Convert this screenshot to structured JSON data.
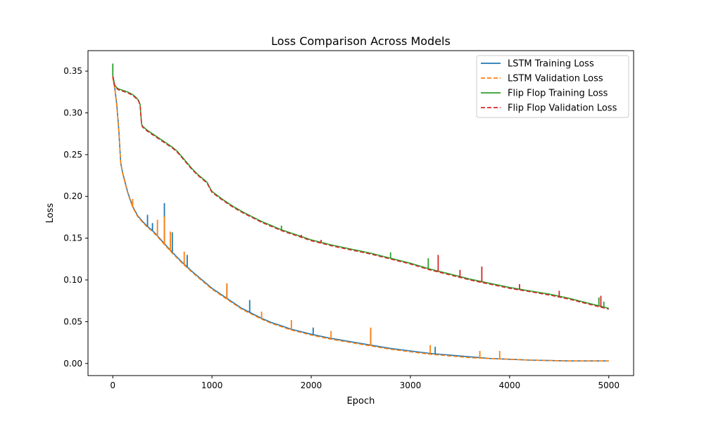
{
  "chart_data": {
    "type": "line",
    "title": "Loss Comparison Across Models",
    "xlabel": "Epoch",
    "ylabel": "Loss",
    "xlim": [
      -250,
      5250
    ],
    "ylim": [
      -0.0145,
      0.3745
    ],
    "xticks": [
      0,
      1000,
      2000,
      3000,
      4000,
      5000
    ],
    "xtick_labels": [
      "0",
      "1000",
      "2000",
      "3000",
      "4000",
      "5000"
    ],
    "yticks": [
      0.0,
      0.05,
      0.1,
      0.15,
      0.2,
      0.25,
      0.3,
      0.35
    ],
    "ytick_labels": [
      "0.00",
      "0.05",
      "0.10",
      "0.15",
      "0.20",
      "0.25",
      "0.30",
      "0.35"
    ],
    "grid": false,
    "legend_position": "top-right",
    "series": [
      {
        "name": "LSTM Training Loss",
        "color": "#1f77b4",
        "dash": "solid",
        "x": [
          0,
          20,
          40,
          60,
          80,
          100,
          150,
          200,
          250,
          300,
          350,
          400,
          450,
          500,
          600,
          700,
          800,
          900,
          1000,
          1100,
          1200,
          1300,
          1400,
          1500,
          1600,
          1700,
          1800,
          1900,
          2000,
          2200,
          2400,
          2600,
          2800,
          3000,
          3200,
          3400,
          3600,
          3800,
          4000,
          4200,
          4400,
          4600,
          4800,
          5000
        ],
        "values": [
          0.343,
          0.33,
          0.31,
          0.28,
          0.24,
          0.228,
          0.205,
          0.188,
          0.177,
          0.17,
          0.164,
          0.159,
          0.153,
          0.146,
          0.133,
          0.121,
          0.11,
          0.1,
          0.09,
          0.082,
          0.074,
          0.066,
          0.06,
          0.054,
          0.049,
          0.045,
          0.041,
          0.038,
          0.035,
          0.03,
          0.026,
          0.022,
          0.018,
          0.015,
          0.012,
          0.01,
          0.008,
          0.006,
          0.005,
          0.004,
          0.0035,
          0.003,
          0.003,
          0.003
        ],
        "spikes": [
          [
            180,
            0.195
          ],
          [
            350,
            0.178
          ],
          [
            400,
            0.168
          ],
          [
            520,
            0.192
          ],
          [
            600,
            0.157
          ],
          [
            750,
            0.13
          ],
          [
            1150,
            0.095
          ],
          [
            1380,
            0.076
          ],
          [
            2020,
            0.043
          ],
          [
            2600,
            0.04
          ],
          [
            3250,
            0.02
          ]
        ]
      },
      {
        "name": "LSTM Validation Loss",
        "color": "#ff7f0e",
        "dash": "dashed",
        "x": [
          0,
          20,
          40,
          60,
          80,
          100,
          150,
          200,
          250,
          300,
          350,
          400,
          450,
          500,
          600,
          700,
          800,
          900,
          1000,
          1100,
          1200,
          1300,
          1400,
          1500,
          1600,
          1700,
          1800,
          1900,
          2000,
          2200,
          2400,
          2600,
          2800,
          3000,
          3200,
          3400,
          3600,
          3800,
          4000,
          4200,
          4400,
          4600,
          4800,
          5000
        ],
        "values": [
          0.342,
          0.329,
          0.309,
          0.279,
          0.239,
          0.227,
          0.204,
          0.187,
          0.176,
          0.169,
          0.163,
          0.158,
          0.152,
          0.145,
          0.132,
          0.12,
          0.109,
          0.099,
          0.089,
          0.081,
          0.073,
          0.065,
          0.059,
          0.053,
          0.048,
          0.044,
          0.04,
          0.037,
          0.034,
          0.029,
          0.025,
          0.021,
          0.017,
          0.014,
          0.011,
          0.009,
          0.007,
          0.006,
          0.005,
          0.004,
          0.0035,
          0.003,
          0.003,
          0.003
        ],
        "spikes": [
          [
            200,
            0.197
          ],
          [
            450,
            0.172
          ],
          [
            520,
            0.176
          ],
          [
            580,
            0.158
          ],
          [
            720,
            0.134
          ],
          [
            1150,
            0.096
          ],
          [
            1500,
            0.062
          ],
          [
            1800,
            0.052
          ],
          [
            2200,
            0.039
          ],
          [
            2600,
            0.043
          ],
          [
            3200,
            0.022
          ],
          [
            3700,
            0.015
          ],
          [
            3900,
            0.015
          ]
        ]
      },
      {
        "name": "Flip Flop Training Loss",
        "color": "#2ca02c",
        "dash": "solid",
        "x": [
          0,
          20,
          50,
          100,
          150,
          200,
          230,
          260,
          275,
          290,
          300,
          350,
          400,
          450,
          500,
          550,
          600,
          650,
          700,
          750,
          800,
          850,
          900,
          950,
          980,
          1000,
          1100,
          1200,
          1300,
          1400,
          1500,
          1600,
          1700,
          1800,
          1900,
          2000,
          2200,
          2400,
          2600,
          2800,
          3000,
          3200,
          3400,
          3600,
          3800,
          4000,
          4200,
          4400,
          4600,
          4800,
          5000
        ],
        "values": [
          0.345,
          0.333,
          0.329,
          0.327,
          0.325,
          0.322,
          0.319,
          0.315,
          0.31,
          0.287,
          0.284,
          0.279,
          0.275,
          0.271,
          0.267,
          0.263,
          0.259,
          0.254,
          0.247,
          0.24,
          0.233,
          0.227,
          0.222,
          0.217,
          0.21,
          0.206,
          0.197,
          0.189,
          0.182,
          0.176,
          0.17,
          0.165,
          0.16,
          0.156,
          0.152,
          0.148,
          0.142,
          0.137,
          0.132,
          0.126,
          0.12,
          0.113,
          0.107,
          0.101,
          0.096,
          0.091,
          0.087,
          0.083,
          0.078,
          0.072,
          0.066
        ],
        "spikes": [
          [
            0,
            0.359
          ],
          [
            1700,
            0.165
          ],
          [
            2800,
            0.133
          ],
          [
            3180,
            0.126
          ],
          [
            4900,
            0.079
          ],
          [
            4950,
            0.074
          ]
        ]
      },
      {
        "name": "Flip Flop Validation Loss",
        "color": "#d62728",
        "dash": "dashed",
        "x": [
          0,
          20,
          50,
          100,
          150,
          200,
          230,
          260,
          275,
          290,
          300,
          350,
          400,
          450,
          500,
          550,
          600,
          650,
          700,
          750,
          800,
          850,
          900,
          950,
          980,
          1000,
          1100,
          1200,
          1300,
          1400,
          1500,
          1600,
          1700,
          1800,
          1900,
          2000,
          2200,
          2400,
          2600,
          2800,
          3000,
          3200,
          3400,
          3600,
          3800,
          4000,
          4200,
          4400,
          4600,
          4800,
          5000
        ],
        "values": [
          0.344,
          0.332,
          0.328,
          0.326,
          0.324,
          0.321,
          0.318,
          0.314,
          0.309,
          0.286,
          0.283,
          0.278,
          0.274,
          0.27,
          0.266,
          0.262,
          0.258,
          0.253,
          0.246,
          0.239,
          0.232,
          0.226,
          0.221,
          0.216,
          0.209,
          0.205,
          0.196,
          0.188,
          0.181,
          0.175,
          0.169,
          0.164,
          0.159,
          0.155,
          0.151,
          0.147,
          0.141,
          0.136,
          0.131,
          0.125,
          0.119,
          0.112,
          0.106,
          0.1,
          0.095,
          0.09,
          0.086,
          0.082,
          0.077,
          0.071,
          0.065
        ],
        "spikes": [
          [
            1900,
            0.154
          ],
          [
            2100,
            0.148
          ],
          [
            3280,
            0.13
          ],
          [
            3500,
            0.112
          ],
          [
            3720,
            0.116
          ],
          [
            4100,
            0.095
          ],
          [
            4500,
            0.087
          ],
          [
            4920,
            0.081
          ]
        ]
      }
    ]
  }
}
